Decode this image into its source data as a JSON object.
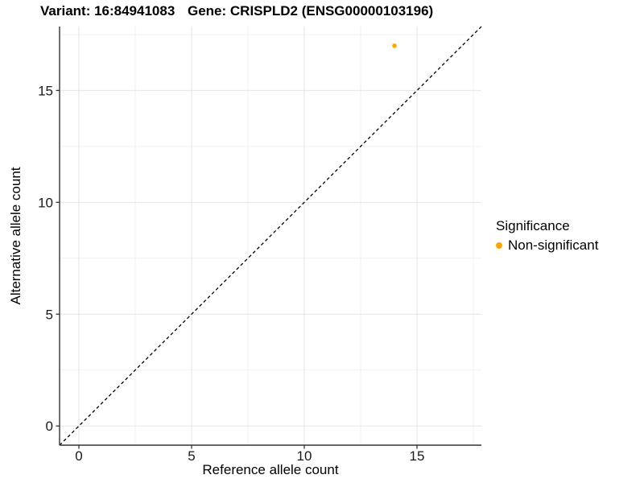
{
  "titles": {
    "variant": "Variant: 16:84941083",
    "gene": "Gene: CRISPLD2 (ENSG00000103196)"
  },
  "chart_data": {
    "type": "scatter",
    "xlabel": "Reference allele count",
    "ylabel": "Alternative allele count",
    "xlim": [
      -0.857,
      17.857
    ],
    "ylim": [
      -0.857,
      17.857
    ],
    "x_ticks": [
      0,
      5,
      10,
      15
    ],
    "y_ticks": [
      0,
      5,
      10,
      15
    ],
    "minor_gridlines": [
      2.5,
      7.5,
      12.5,
      17.5
    ],
    "grid": "major+minor",
    "identity_line": {
      "style": "dashed",
      "from": [
        -0.857,
        -0.857
      ],
      "to": [
        17.857,
        17.857
      ],
      "color": "#000000"
    },
    "series": [
      {
        "name": "Non-significant",
        "color": "#FFA500",
        "points": [
          [
            14,
            17
          ]
        ]
      }
    ],
    "legend": {
      "title": "Significance",
      "position": "right",
      "entries": [
        {
          "label": "Non-significant",
          "color": "#FFA500"
        }
      ]
    }
  },
  "style": {
    "grid_major": "#E4E4E4",
    "grid_minor": "#F1F1F1",
    "axis_line": "#333333",
    "tick_text": "#1a1a1a",
    "background": "#FFFFFF"
  }
}
